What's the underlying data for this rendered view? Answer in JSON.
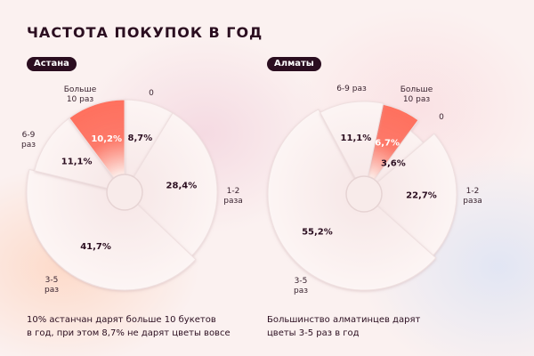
{
  "title": "ЧАСТОТА ПОКУПОК В ГОД",
  "colors": {
    "highlight": "#ff6f5c",
    "slice": "#fbf3f3",
    "text": "#2b0e20"
  },
  "chart_data": [
    {
      "type": "pie",
      "title": "Астана",
      "categories": [
        "0",
        "1-2 раза",
        "3-5 раз",
        "6-9 раз",
        "Больше 10 раз"
      ],
      "values": [
        8.7,
        28.4,
        41.7,
        11.1,
        10.2
      ],
      "labels": [
        "8,7%",
        "28,4%",
        "41,7%",
        "11,1%",
        "10,2%"
      ],
      "highlight": "Больше 10 раз",
      "caption": [
        "10% астанчан дарят больше 10 букетов",
        "в год, при этом 8,7% не дарят цветы вовсе"
      ]
    },
    {
      "type": "pie",
      "title": "Алматы",
      "categories": [
        "Больше 10 раз",
        "0",
        "1-2 раза",
        "3-5 раз",
        "6-9 раз"
      ],
      "values": [
        6.7,
        3.6,
        22.7,
        55.2,
        11.1
      ],
      "labels": [
        "6,7%",
        "3,6%",
        "22,7%",
        "55,2%",
        "11,1%"
      ],
      "highlight": "Больше 10 раз",
      "caption": [
        "Большинство алматинцев дарят",
        "цветы 3-5 раз в год"
      ]
    }
  ],
  "category_text": {
    "c0": {
      "more10": [
        "Больше",
        "10 раз"
      ],
      "zero": "0",
      "six9": [
        "6-9",
        "раз"
      ],
      "one2": [
        "1-2",
        "раза"
      ],
      "three5": [
        "3-5",
        "раз"
      ]
    },
    "c1": {
      "more10": [
        "Больше",
        "10 раз"
      ],
      "zero": "0",
      "six9": "6-9 раз",
      "one2": [
        "1-2",
        "раза"
      ],
      "three5": [
        "3-5",
        "раз"
      ]
    }
  }
}
